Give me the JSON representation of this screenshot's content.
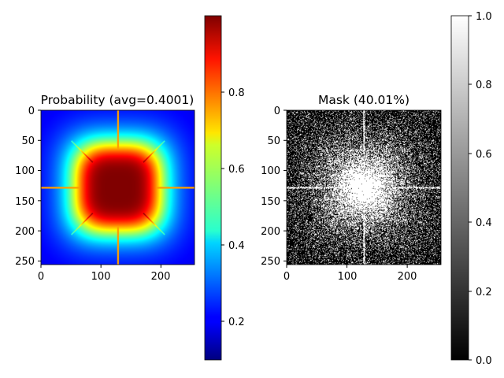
{
  "chart_data": [
    {
      "type": "heatmap",
      "title": "Probability (avg=0.4001)",
      "colormap": "jet",
      "xlim": [
        0,
        256
      ],
      "ylim": [
        256,
        0
      ],
      "x_ticks": [
        "0",
        "100",
        "200"
      ],
      "y_ticks": [
        "0",
        "50",
        "100",
        "150",
        "200",
        "250"
      ],
      "colorbar": {
        "range": [
          0.09,
          1.0
        ],
        "ticks": [
          "0.2",
          "0.4",
          "0.6",
          "0.8"
        ]
      }
    },
    {
      "type": "heatmap",
      "title": "Mask (40.01%)",
      "colormap": "gray",
      "xlim": [
        0,
        256
      ],
      "ylim": [
        256,
        0
      ],
      "x_ticks": [
        "0",
        "100",
        "200"
      ],
      "y_ticks": [
        "0",
        "50",
        "100",
        "150",
        "200",
        "250"
      ],
      "colorbar": {
        "range": [
          0.0,
          1.0
        ],
        "ticks": [
          "0.0",
          "0.2",
          "0.4",
          "0.6",
          "0.8",
          "1.0"
        ]
      }
    }
  ]
}
